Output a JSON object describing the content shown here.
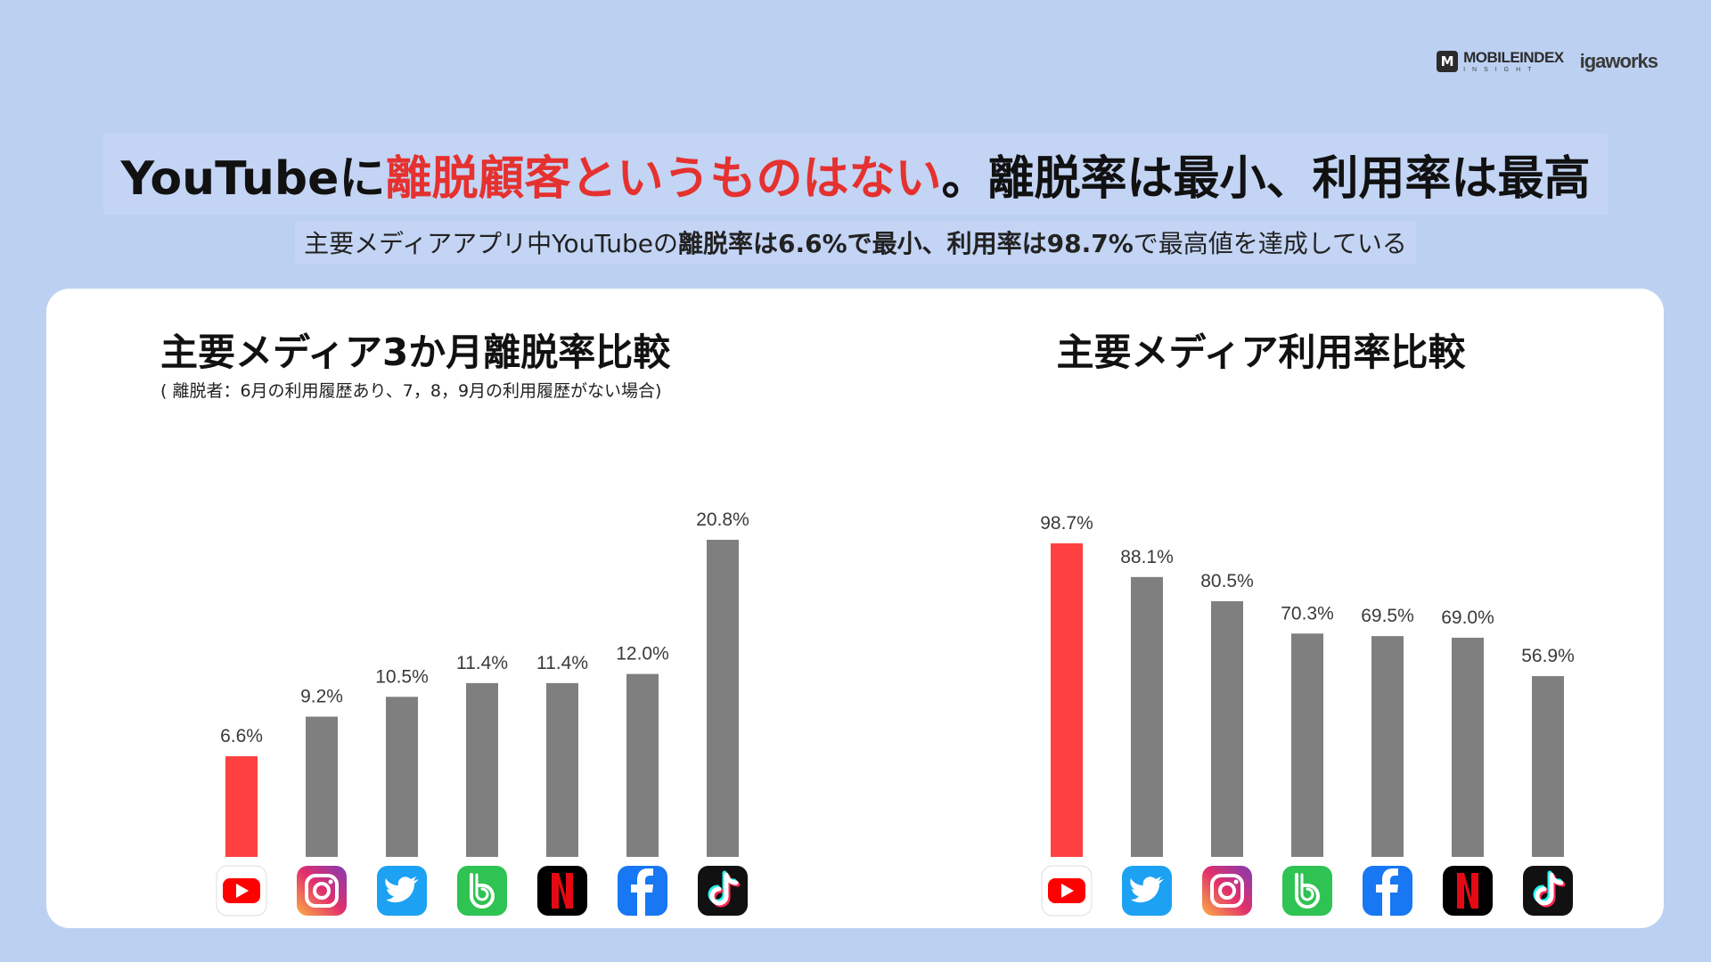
{
  "logos": {
    "mi_mark": "M",
    "mobileindex": "MOBILEINDEX",
    "insight": "INSIGHT",
    "igaworks": "igaworks"
  },
  "headline": {
    "part1": "YouTubeに",
    "part2_red": "離脱顧客というものはない",
    "part3": "。離脱率は最小、利用率は最高"
  },
  "subhead": {
    "part1": "主要メディアアプリ中YouTubeの",
    "part2_bold": "離脱率は6.6%で最小、利用率は98.7%",
    "part3": "で最高値を達成している"
  },
  "colors": {
    "highlight": "#ff4040",
    "bar": "#7f7f7f",
    "headline_red": "#e5312f"
  },
  "chart_data": [
    {
      "type": "bar",
      "title": "主要メディア3か月離脱率比較",
      "subtitle": "( 離脱者：6月の利用履歴あり、7，8，9月の利用履歴がない場合)",
      "categories": [
        "youtube-icon",
        "instagram-icon",
        "twitter-icon",
        "band-icon",
        "netflix-icon",
        "facebook-icon",
        "tiktok-icon"
      ],
      "values": [
        6.6,
        9.2,
        10.5,
        11.4,
        11.4,
        12.0,
        20.8
      ],
      "labels": [
        "6.6%",
        "9.2%",
        "10.5%",
        "11.4%",
        "11.4%",
        "12.0%",
        "20.8%"
      ],
      "highlight_index": 0,
      "ylim": [
        0,
        20.8
      ],
      "grid": false,
      "legend": "none"
    },
    {
      "type": "bar",
      "title": "主要メディア利用率比較",
      "subtitle": "",
      "categories": [
        "youtube-icon",
        "twitter-icon",
        "instagram-icon",
        "band-icon",
        "facebook-icon",
        "netflix-icon",
        "tiktok-icon"
      ],
      "values": [
        98.7,
        88.1,
        80.5,
        70.3,
        69.5,
        69.0,
        56.9
      ],
      "labels": [
        "98.7%",
        "88.1%",
        "80.5%",
        "70.3%",
        "69.5%",
        "69.0%",
        "56.9%"
      ],
      "highlight_index": 0,
      "ylim": [
        0,
        98.7
      ],
      "grid": false,
      "legend": "none"
    }
  ]
}
